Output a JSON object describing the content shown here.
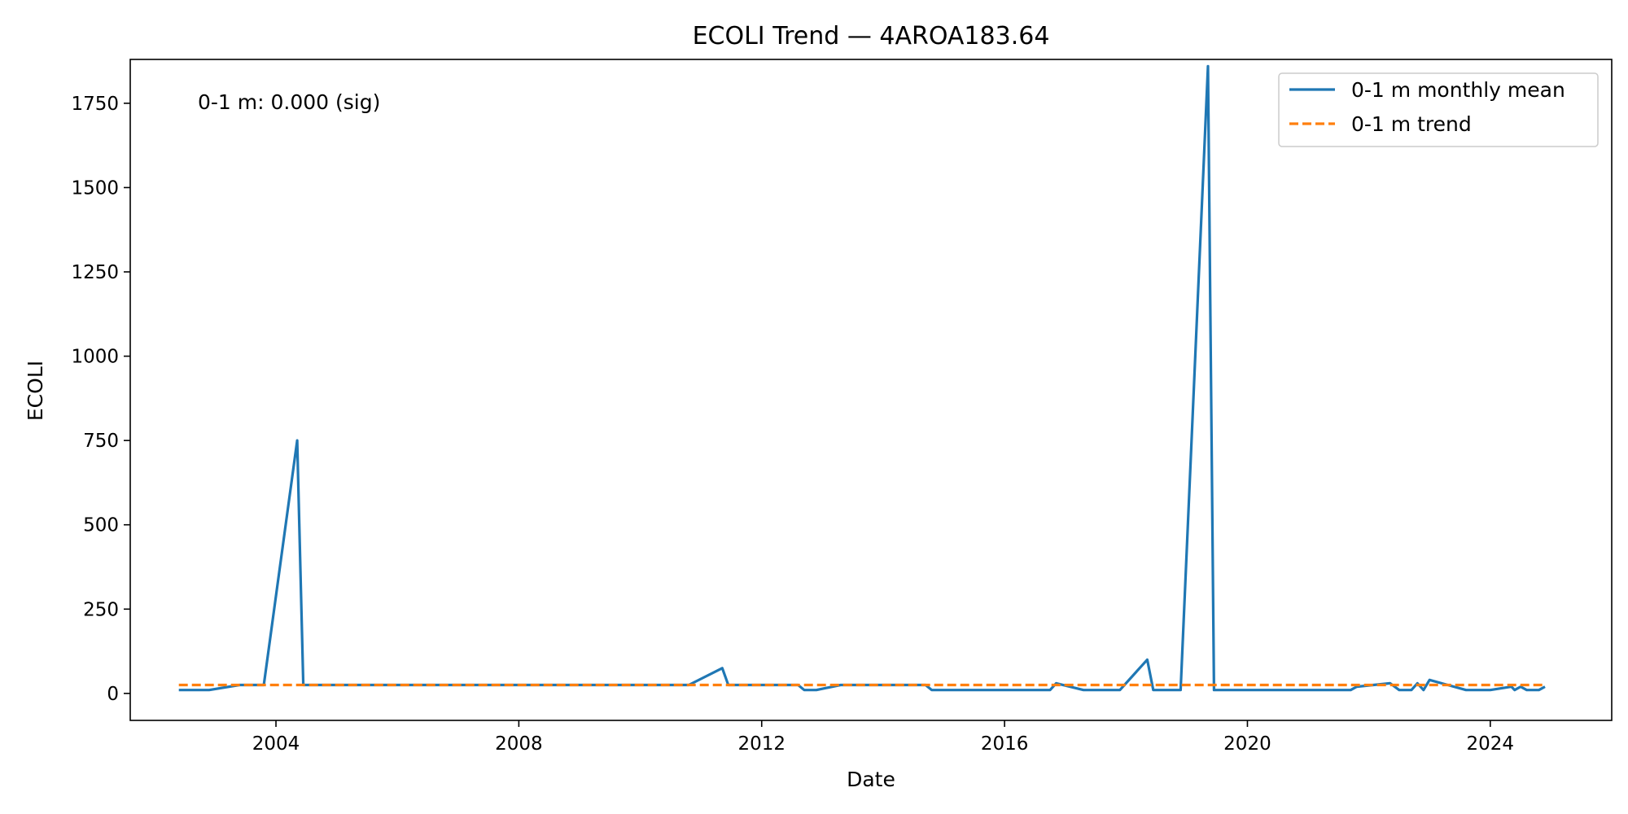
{
  "chart_data": {
    "type": "line",
    "title": "ECOLI Trend — 4AROA183.64",
    "xlabel": "Date",
    "ylabel": "ECOLI",
    "xlim": [
      2001.6,
      2026.0
    ],
    "ylim": [
      -80,
      1880
    ],
    "x_ticks": [
      2004,
      2008,
      2012,
      2016,
      2020,
      2024
    ],
    "x_tick_labels": [
      "2004",
      "2008",
      "2012",
      "2016",
      "2020",
      "2024"
    ],
    "y_ticks": [
      0,
      250,
      500,
      750,
      1000,
      1250,
      1500,
      1750
    ],
    "y_tick_labels": [
      "0",
      "250",
      "500",
      "750",
      "1000",
      "1250",
      "1500",
      "1750"
    ],
    "grid": false,
    "legend_position": "top-right",
    "annotation": "0-1 m: 0.000 (sig)",
    "colors": {
      "monthly_mean": "#1f77b4",
      "trend": "#ff7f0e"
    },
    "series": [
      {
        "name": "0-1 m monthly mean",
        "style": "solid",
        "x": [
          2002.4,
          2002.9,
          2003.4,
          2003.8,
          2004.35,
          2004.45,
          2007.0,
          2010.0,
          2010.8,
          2011.35,
          2011.45,
          2012.6,
          2012.7,
          2012.9,
          2013.3,
          2014.0,
          2014.7,
          2014.8,
          2016.0,
          2016.75,
          2016.85,
          2017.3,
          2017.9,
          2018.35,
          2018.45,
          2018.9,
          2019.35,
          2019.45,
          2020.0,
          2021.0,
          2021.7,
          2021.8,
          2022.35,
          2022.5,
          2022.7,
          2022.8,
          2022.9,
          2023.0,
          2023.3,
          2023.6,
          2024.0,
          2024.35,
          2024.4,
          2024.5,
          2024.6,
          2024.8,
          2024.9
        ],
        "y": [
          10,
          10,
          25,
          25,
          750,
          25,
          25,
          25,
          25,
          75,
          25,
          25,
          10,
          10,
          25,
          25,
          25,
          10,
          10,
          10,
          30,
          10,
          10,
          100,
          10,
          10,
          1860,
          10,
          10,
          10,
          10,
          20,
          30,
          10,
          10,
          30,
          10,
          40,
          25,
          10,
          10,
          20,
          10,
          20,
          10,
          10,
          20
        ]
      },
      {
        "name": "0-1 m trend",
        "style": "dashed",
        "x": [
          2002.4,
          2024.9
        ],
        "y": [
          25,
          25
        ]
      }
    ]
  }
}
